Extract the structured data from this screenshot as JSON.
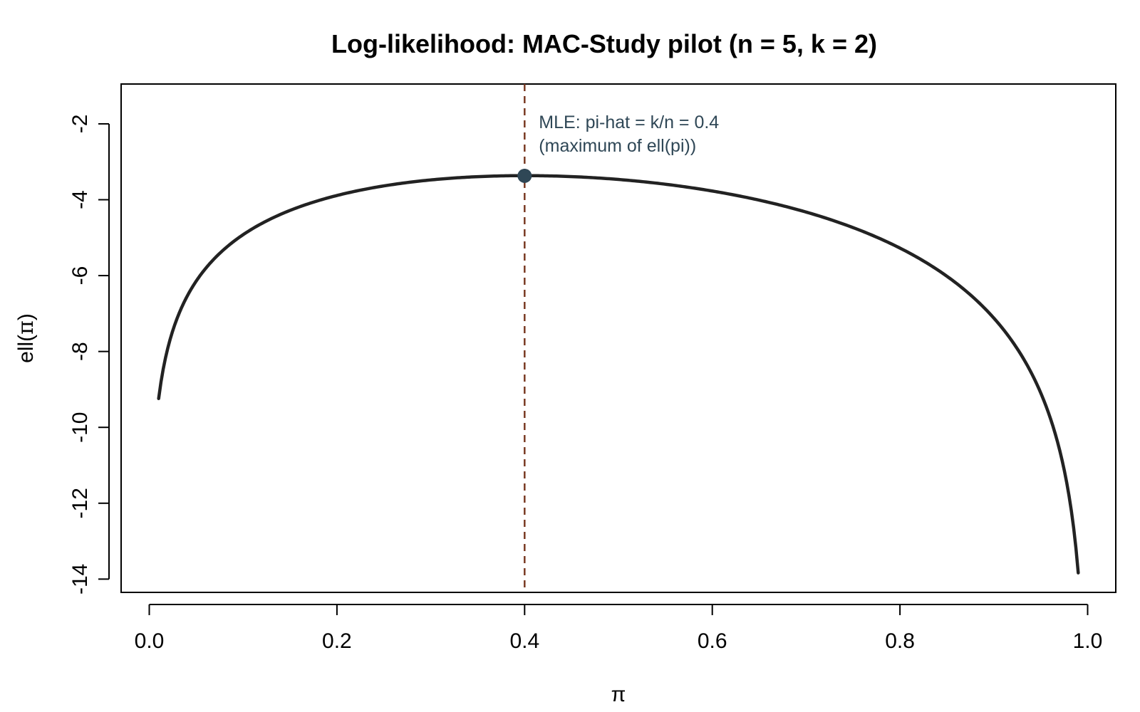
{
  "chart_data": {
    "type": "line",
    "title": "Log-likelihood: MAC-Study pilot (n = 5, k = 2)",
    "xlabel": "π",
    "ylabel_prefix": "ell(",
    "ylabel_symbol": "π",
    "ylabel_suffix": ")",
    "xlim": [
      -0.03,
      1.03
    ],
    "ylim": [
      -14.35,
      -0.95
    ],
    "x_ticks": [
      0.0,
      0.2,
      0.4,
      0.6,
      0.8,
      1.0
    ],
    "x_tick_labels": [
      "0.0",
      "0.2",
      "0.4",
      "0.6",
      "0.8",
      "1.0"
    ],
    "y_ticks": [
      -2,
      -4,
      -6,
      -8,
      -10,
      -12,
      -14
    ],
    "y_tick_labels": [
      "-2",
      "-4",
      "-6",
      "-8",
      "-10",
      "-12",
      "-14"
    ],
    "grid": false,
    "legend": "none",
    "n": 5,
    "k": 2,
    "x_range": [
      0.01,
      0.99
    ],
    "curve_formula": "ell(pi) = k*log(pi) + (n-k)*log(1-pi)",
    "series": [
      {
        "x": [
          0.01,
          0.02,
          0.05,
          0.1,
          0.2,
          0.3,
          0.4,
          0.5,
          0.6,
          0.7,
          0.8,
          0.9,
          0.95,
          0.99
        ],
        "y": [
          -9.24,
          -7.88,
          -6.15,
          -4.92,
          -3.89,
          -3.48,
          -3.37,
          -3.47,
          -3.77,
          -4.33,
          -5.27,
          -7.12,
          -9.09,
          -13.84
        ]
      }
    ],
    "mle": {
      "x": 0.4,
      "y": -3.37
    },
    "vline_x": 0.4,
    "annotation": {
      "line1": "MLE: pi-hat = k/n = 0.4",
      "line2": "(maximum of ell(pi))"
    },
    "colors": {
      "curve": "#222222",
      "vline": "#7a3b24",
      "point": "#2f4756",
      "annotation": "#2f4756",
      "axis": "#000000"
    }
  }
}
